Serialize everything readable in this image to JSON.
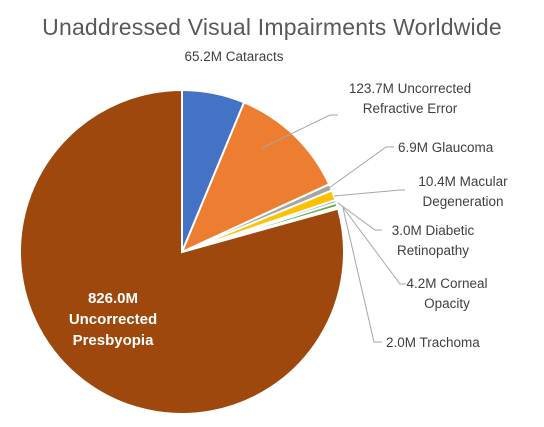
{
  "chart_data": {
    "type": "pie",
    "title": "Unaddressed Visual Impairments Worldwide",
    "unit": "M",
    "slices": [
      {
        "value": 65.2,
        "label_lines": [
          "65.2M Cataracts"
        ],
        "color": "#4472C4"
      },
      {
        "value": 123.7,
        "label_lines": [
          "123.7M Uncorrected",
          "Refractive Error"
        ],
        "color": "#ED7D31"
      },
      {
        "value": 6.9,
        "label_lines": [
          "6.9M Glaucoma"
        ],
        "color": "#A5A5A5"
      },
      {
        "value": 10.4,
        "label_lines": [
          "10.4M Macular",
          "Degeneration"
        ],
        "color": "#FFC000"
      },
      {
        "value": 3.0,
        "label_lines": [
          "3.0M Diabetic",
          "Retinopathy"
        ],
        "color": "#5B9BD5"
      },
      {
        "value": 4.2,
        "label_lines": [
          "4.2M Corneal",
          "Opacity"
        ],
        "color": "#70AD47"
      },
      {
        "value": 2.0,
        "label_lines": [
          "2.0M Trachoma"
        ],
        "color": "#264478"
      },
      {
        "value": 826.0,
        "label_lines": [
          "826.0M",
          "Uncorrected",
          "Presbyopia"
        ],
        "color": "#9E480E"
      }
    ]
  }
}
